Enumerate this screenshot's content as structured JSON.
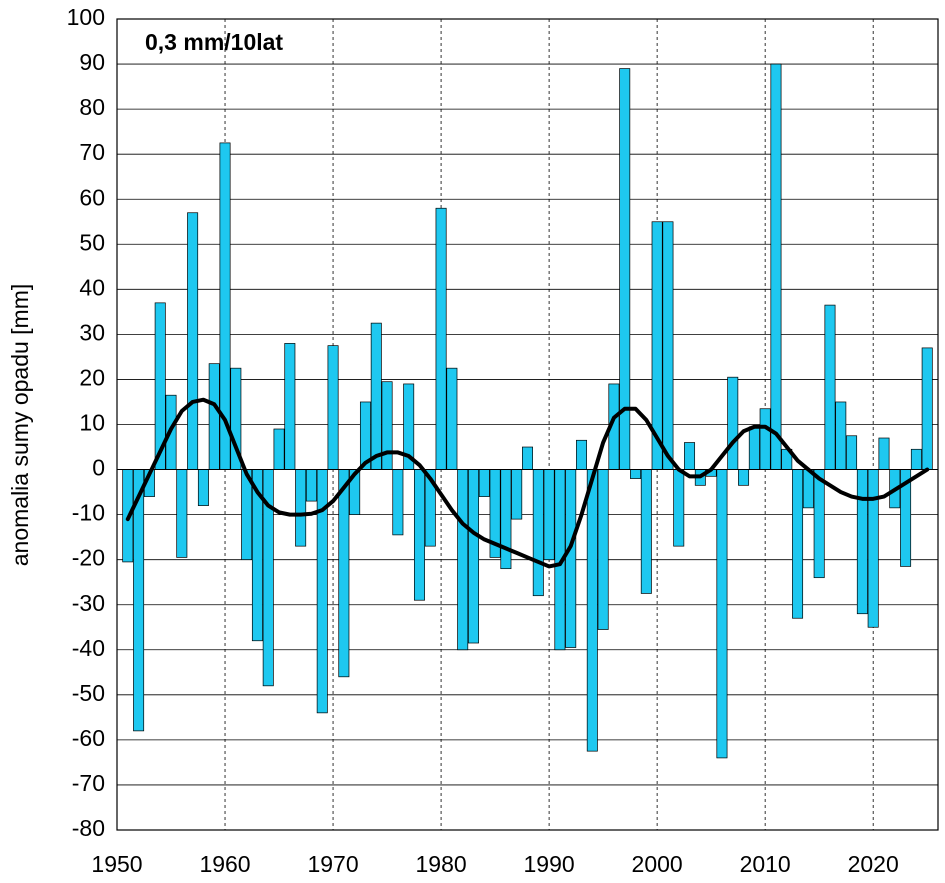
{
  "chart_data": {
    "type": "bar",
    "annotation": "0,3 mm/10lat",
    "annotation_color": "#1ec8f0",
    "ylabel": "anomalia sumy opadu [mm]",
    "x": [
      1951,
      1952,
      1953,
      1954,
      1955,
      1956,
      1957,
      1958,
      1959,
      1960,
      1961,
      1962,
      1963,
      1964,
      1965,
      1966,
      1967,
      1968,
      1969,
      1970,
      1971,
      1972,
      1973,
      1974,
      1975,
      1976,
      1977,
      1978,
      1979,
      1980,
      1981,
      1982,
      1983,
      1984,
      1985,
      1986,
      1987,
      1988,
      1989,
      1990,
      1991,
      1992,
      1993,
      1994,
      1995,
      1996,
      1997,
      1998,
      1999,
      2000,
      2001,
      2002,
      2003,
      2004,
      2005,
      2006,
      2007,
      2008,
      2009,
      2010,
      2011,
      2012,
      2013,
      2014,
      2015,
      2016,
      2017,
      2018,
      2019,
      2020,
      2021,
      2022,
      2023,
      2024,
      2025
    ],
    "series": [
      {
        "type": "bar",
        "color": "#1ec8f0",
        "values": [
          -20.5,
          -58,
          -6,
          37,
          16.5,
          -19.5,
          57,
          -8,
          23.5,
          72.5,
          22.5,
          -20,
          -38,
          -48,
          9,
          28,
          -17,
          -7,
          -54,
          27.5,
          -46,
          -10,
          15,
          32.5,
          19.5,
          -14.5,
          19,
          -29,
          -17,
          58,
          22.5,
          -40,
          -38.5,
          -6,
          -19.5,
          -22,
          -11,
          5,
          -28,
          -20,
          -40,
          -39.5,
          6.5,
          -62.5,
          -35.5,
          19,
          89,
          -2,
          -27.5,
          55,
          55,
          -17,
          6,
          -3.5,
          -1.5,
          -64,
          20.5,
          -3.5,
          9.5,
          13.5,
          90,
          4.5,
          -33,
          -8.5,
          -24,
          36.5,
          15,
          7.5,
          -32,
          -35,
          7,
          -8.5,
          -21.5,
          4.5,
          27
        ]
      },
      {
        "type": "line",
        "color": "#000000",
        "values": [
          -11,
          -6,
          -1,
          4,
          9,
          13,
          15,
          15.5,
          14.5,
          11,
          5,
          -1,
          -5,
          -8,
          -9.5,
          -10,
          -10,
          -9.8,
          -9,
          -7,
          -4,
          -1,
          1.5,
          3,
          3.8,
          3.8,
          3,
          1,
          -2,
          -5.5,
          -9,
          -12,
          -14,
          -15.5,
          -16.5,
          -17.5,
          -18.5,
          -19.5,
          -20.5,
          -21.5,
          -21,
          -17,
          -10,
          -2,
          6,
          11.5,
          13.5,
          13.5,
          11,
          7,
          3,
          0,
          -1.5,
          -1.5,
          0,
          3,
          6,
          8.5,
          9.5,
          9.5,
          8,
          5,
          2,
          0,
          -2,
          -3.5,
          -5,
          -6,
          -6.5,
          -6.5,
          -6,
          -4.5,
          -3,
          -1.5,
          0
        ]
      }
    ],
    "xlim": [
      1950,
      2026
    ],
    "xticks": [
      1950,
      1960,
      1970,
      1980,
      1990,
      2000,
      2010,
      2020
    ],
    "ylim": [
      -80,
      100
    ],
    "yticks": [
      -80,
      -70,
      -60,
      -50,
      -40,
      -30,
      -20,
      -10,
      0,
      10,
      20,
      30,
      40,
      50,
      60,
      70,
      80,
      90,
      100
    ],
    "grid": true
  }
}
